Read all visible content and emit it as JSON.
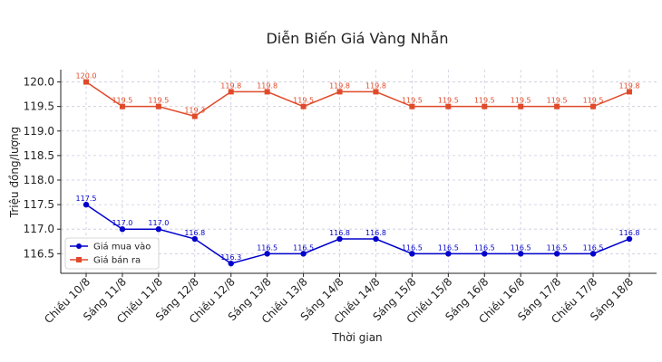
{
  "chart_data": {
    "type": "line",
    "title": "Diễn Biến Giá Vàng Nhẫn",
    "xlabel": "Thời gian",
    "ylabel": "Triệu đồng/lượng",
    "categories": [
      "Chiều 10/8",
      "Sáng 11/8",
      "Chiều 11/8",
      "Sáng 12/8",
      "Chiều 12/8",
      "Sáng 13/8",
      "Chiều 13/8",
      "Sáng 14/8",
      "Chiều 14/8",
      "Sáng 15/8",
      "Chiều 15/8",
      "Sáng 16/8",
      "Chiều 16/8",
      "Sáng 17/8",
      "Chiều 17/8",
      "Sáng 18/8"
    ],
    "ylim": [
      116.1,
      120.25
    ],
    "yticks": [
      "116.5",
      "117.0",
      "117.5",
      "118.0",
      "118.5",
      "119.0",
      "119.5",
      "120.0"
    ],
    "grid": true,
    "legend_position": "lower-left",
    "series": [
      {
        "name": "Giá mua vào",
        "color": "#0000cc",
        "marker": "circle",
        "values": [
          117.5,
          117.0,
          117.0,
          116.8,
          116.3,
          116.5,
          116.5,
          116.8,
          116.8,
          116.5,
          116.5,
          116.5,
          116.5,
          116.5,
          116.5,
          116.8
        ],
        "labels": [
          "117.5",
          "117.0",
          "117.0",
          "116.8",
          "116.3",
          "116.5",
          "116.5",
          "116.8",
          "116.8",
          "116.5",
          "116.5",
          "116.5",
          "116.5",
          "116.5",
          "116.5",
          "116.8"
        ]
      },
      {
        "name": "Giá bán ra",
        "color": "#e04a2a",
        "marker": "square",
        "values": [
          120.0,
          119.5,
          119.5,
          119.3,
          119.8,
          119.8,
          119.5,
          119.8,
          119.8,
          119.5,
          119.5,
          119.5,
          119.5,
          119.5,
          119.5,
          119.8
        ],
        "labels": [
          "120.0",
          "119.5",
          "119.5",
          "119.3",
          "119.8",
          "119.8",
          "119.5",
          "119.8",
          "119.8",
          "119.5",
          "119.5",
          "119.5",
          "119.5",
          "119.5",
          "119.5",
          "119.8"
        ]
      }
    ]
  }
}
